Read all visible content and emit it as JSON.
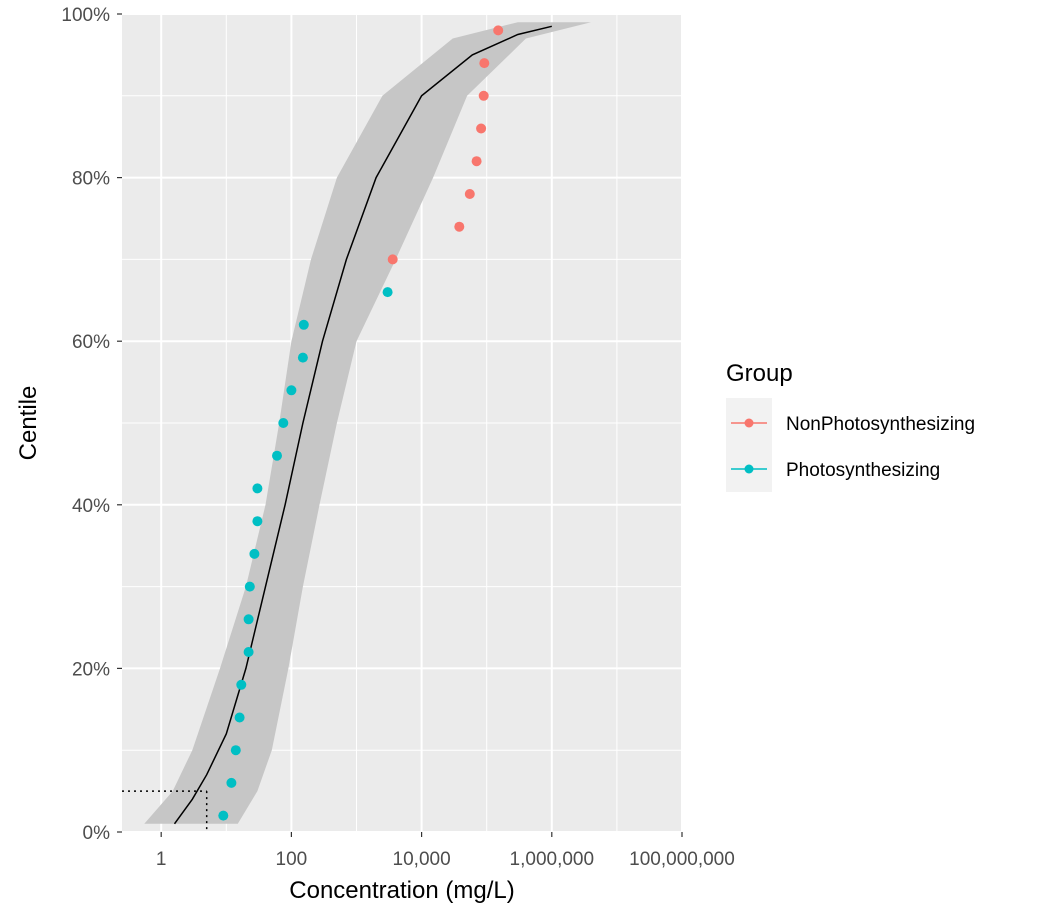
{
  "chart_data": {
    "type": "scatter",
    "xlabel": "Concentration (mg/L)",
    "ylabel": "Centile",
    "x_scale": "log10",
    "xlim": [
      0.25,
      100000000
    ],
    "ylim": [
      0,
      100
    ],
    "x_ticks": [
      {
        "value": 1,
        "label": "1"
      },
      {
        "value": 100,
        "label": "100"
      },
      {
        "value": 10000,
        "label": "10,000"
      },
      {
        "value": 1000000,
        "label": "1,000,000"
      },
      {
        "value": 100000000,
        "label": "100,000,000"
      }
    ],
    "y_ticks": [
      {
        "value": 0,
        "label": "0%"
      },
      {
        "value": 20,
        "label": "20%"
      },
      {
        "value": 40,
        "label": "40%"
      },
      {
        "value": 60,
        "label": "60%"
      },
      {
        "value": 80,
        "label": "80%"
      },
      {
        "value": 100,
        "label": "100%"
      }
    ],
    "grid": true,
    "background": "#ebebeb",
    "legend": {
      "title": "Group",
      "position": "right",
      "entries": [
        "NonPhotosynthesizing",
        "Photosynthesizing"
      ]
    },
    "series": [
      {
        "name": "NonPhotosynthesizing",
        "color": "#f8766d",
        "points": [
          {
            "x": 3600,
            "y": 70
          },
          {
            "x": 38000,
            "y": 74
          },
          {
            "x": 55000,
            "y": 78
          },
          {
            "x": 70000,
            "y": 82
          },
          {
            "x": 82000,
            "y": 86
          },
          {
            "x": 90000,
            "y": 90
          },
          {
            "x": 92000,
            "y": 94
          },
          {
            "x": 150000,
            "y": 98
          }
        ]
      },
      {
        "name": "Photosynthesizing",
        "color": "#00bfc4",
        "points": [
          {
            "x": 9,
            "y": 2
          },
          {
            "x": 12,
            "y": 6
          },
          {
            "x": 14,
            "y": 10
          },
          {
            "x": 16,
            "y": 14
          },
          {
            "x": 17,
            "y": 18
          },
          {
            "x": 22,
            "y": 22
          },
          {
            "x": 22,
            "y": 26
          },
          {
            "x": 23,
            "y": 30
          },
          {
            "x": 27,
            "y": 34
          },
          {
            "x": 30,
            "y": 38
          },
          {
            "x": 30,
            "y": 42
          },
          {
            "x": 60,
            "y": 46
          },
          {
            "x": 75,
            "y": 50
          },
          {
            "x": 100,
            "y": 54
          },
          {
            "x": 150,
            "y": 58
          },
          {
            "x": 155,
            "y": 62
          },
          {
            "x": 3000,
            "y": 66
          }
        ]
      }
    ],
    "fitted_curve": {
      "color": "#000000",
      "points": [
        {
          "x": 1.6,
          "y": 1
        },
        {
          "x": 3,
          "y": 4
        },
        {
          "x": 5,
          "y": 7
        },
        {
          "x": 10,
          "y": 12
        },
        {
          "x": 20,
          "y": 20
        },
        {
          "x": 40,
          "y": 30
        },
        {
          "x": 80,
          "y": 40
        },
        {
          "x": 150,
          "y": 50
        },
        {
          "x": 300,
          "y": 60
        },
        {
          "x": 700,
          "y": 70
        },
        {
          "x": 2000,
          "y": 80
        },
        {
          "x": 10000,
          "y": 90
        },
        {
          "x": 60000,
          "y": 95
        },
        {
          "x": 300000,
          "y": 97.5
        },
        {
          "x": 1000000,
          "y": 98.5
        }
      ]
    },
    "confidence_band": {
      "color": "#c6c6c6",
      "upper": [
        {
          "x": 0.55,
          "y": 1
        },
        {
          "x": 1.5,
          "y": 5
        },
        {
          "x": 3,
          "y": 10
        },
        {
          "x": 8,
          "y": 20
        },
        {
          "x": 20,
          "y": 30
        },
        {
          "x": 40,
          "y": 40
        },
        {
          "x": 65,
          "y": 50
        },
        {
          "x": 100,
          "y": 60
        },
        {
          "x": 200,
          "y": 70
        },
        {
          "x": 500,
          "y": 80
        },
        {
          "x": 2500,
          "y": 90
        },
        {
          "x": 30000,
          "y": 97
        },
        {
          "x": 300000,
          "y": 99
        }
      ],
      "lower": [
        {
          "x": 4000000,
          "y": 99
        },
        {
          "x": 400000,
          "y": 97
        },
        {
          "x": 50000,
          "y": 90
        },
        {
          "x": 15000,
          "y": 80
        },
        {
          "x": 4000,
          "y": 70
        },
        {
          "x": 1000,
          "y": 60
        },
        {
          "x": 500,
          "y": 50
        },
        {
          "x": 270,
          "y": 40
        },
        {
          "x": 150,
          "y": 30
        },
        {
          "x": 90,
          "y": 20
        },
        {
          "x": 50,
          "y": 10
        },
        {
          "x": 30,
          "y": 5
        },
        {
          "x": 15,
          "y": 1
        }
      ]
    },
    "hc5_marker": {
      "x": 5,
      "y": 5,
      "style": "dotted"
    }
  }
}
